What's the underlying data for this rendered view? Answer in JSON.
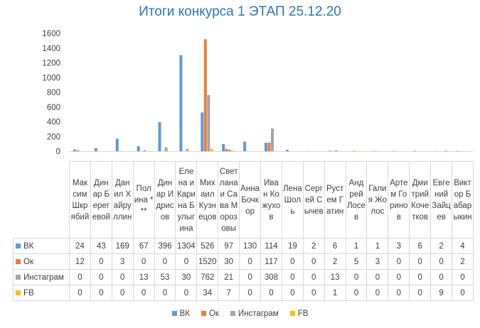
{
  "chart_data": {
    "type": "bar",
    "title": "Итоги конкурса 1 ЭТАП 25.12.20",
    "xlabel": "",
    "ylabel": "",
    "ylim": [
      0,
      1600
    ],
    "yticks": [
      "0",
      "200",
      "400",
      "600",
      "800",
      "1000",
      "1200",
      "1400",
      "1600"
    ],
    "grid": false,
    "legend_position": "bottom",
    "categories": [
      "Максим Шкрябий",
      "Динар Берегевой",
      "Данил Хайруллин",
      "Полина ***",
      "Динар Идрисов",
      "Елена и Карина Булыгина",
      "Михаил Кузнецов",
      "Светлана и Сава Морозовы",
      "Анна Бочкор",
      "Иван Кожухов",
      "Лена Шоль",
      "Сергей Сычев",
      "Рустем Гатин",
      "Андрей Лосев",
      "Галия Жолос",
      "Артем Горинов",
      "Дмитрий Кочетков",
      "Евгений Зайцев",
      "Виктор Бабарыкин"
    ],
    "series": [
      {
        "name": "ВК",
        "color": "#5b9bd5",
        "values": [
          24,
          43,
          169,
          67,
          396,
          1304,
          526,
          97,
          130,
          114,
          19,
          2,
          6,
          1,
          1,
          3,
          6,
          2,
          4
        ]
      },
      {
        "name": "Ок",
        "color": "#ed7d31",
        "values": [
          12,
          0,
          3,
          0,
          0,
          0,
          1520,
          30,
          0,
          117,
          0,
          0,
          2,
          5,
          3,
          0,
          0,
          0,
          2
        ]
      },
      {
        "name": "Инстаграм",
        "color": "#a5a5a5",
        "values": [
          0,
          0,
          0,
          13,
          53,
          30,
          762,
          21,
          0,
          308,
          0,
          0,
          13,
          0,
          0,
          0,
          0,
          0,
          0
        ]
      },
      {
        "name": "FB",
        "color": "#ffc000",
        "values": [
          0,
          0,
          0,
          0,
          0,
          0,
          34,
          7,
          0,
          0,
          0,
          0,
          1,
          0,
          0,
          0,
          0,
          9,
          0
        ]
      }
    ]
  }
}
